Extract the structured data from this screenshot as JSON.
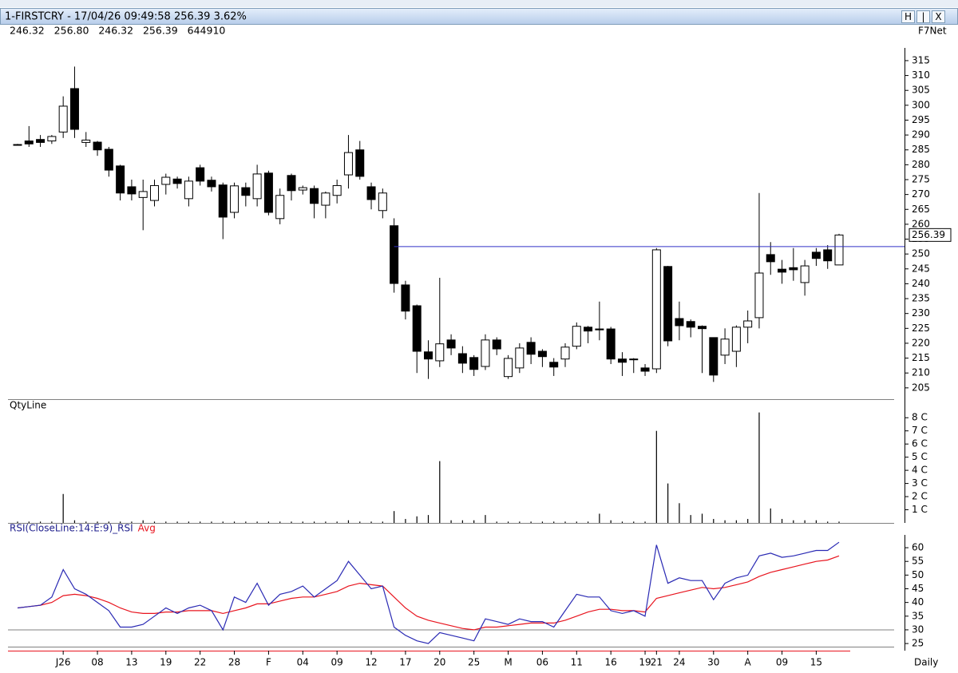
{
  "window": {
    "title": "1-FIRSTCRY - 17/04/26 09:49:58 256.39 3.62%",
    "buttons": [
      "H",
      "|",
      "X"
    ],
    "quote": "246.32   256.80   246.32   256.39   644910",
    "source": "F7Net",
    "periodicity": "Daily"
  },
  "chart_data": [
    {
      "type": "candlestick",
      "categories": [
        null,
        null,
        null,
        null,
        "J26",
        null,
        null,
        "08",
        null,
        null,
        "13",
        null,
        null,
        "19",
        null,
        null,
        "22",
        null,
        null,
        "28",
        null,
        null,
        "F",
        null,
        null,
        "04",
        null,
        null,
        "09",
        null,
        null,
        "12",
        null,
        null,
        "17",
        null,
        null,
        "20",
        null,
        null,
        "25",
        null,
        null,
        "M",
        null,
        null,
        "06",
        null,
        null,
        "11",
        null,
        null,
        "16",
        null,
        null,
        "19",
        "21",
        null,
        "24",
        null,
        null,
        "30",
        null,
        null,
        "A",
        null,
        null,
        "09",
        null,
        null,
        "15",
        null,
        null
      ],
      "open": [
        286.8,
        288,
        288.5,
        288,
        291,
        305.6,
        287.5,
        287.6,
        285.2,
        279.6,
        272.6,
        269,
        268,
        273.4,
        275.2,
        268.6,
        279,
        274.8,
        273.2,
        264,
        272.3,
        268.6,
        277.2,
        261.9,
        276.4,
        271.5,
        272,
        266.4,
        269.7,
        276.6,
        285,
        272.6,
        264.6,
        259.5,
        239.6,
        232.6,
        217.1,
        214.1,
        221.1,
        216.5,
        215.2,
        212.2,
        221.1,
        208.8,
        211.7,
        220.3,
        217.3,
        213.6,
        214.7,
        219,
        225.4,
        224.8,
        224.8,
        214.7,
        214.7,
        211.7,
        211.4,
        245.8,
        228.3,
        227.3,
        225.7,
        221.9,
        216,
        217.3,
        225.4,
        228.6,
        249.8,
        244.9,
        245.4,
        240.4,
        250.6,
        251.4,
        246.32
      ],
      "high": [
        287,
        293,
        290,
        290,
        303,
        313,
        291,
        288,
        286,
        280,
        275,
        275,
        275,
        277,
        276,
        276,
        280,
        276,
        274,
        274,
        274,
        280,
        278,
        272,
        277,
        273,
        273,
        271,
        275,
        290,
        288,
        274,
        272,
        262,
        241,
        233,
        221,
        242,
        223,
        219,
        216,
        223,
        222,
        216,
        220,
        222,
        218,
        215,
        220,
        227,
        225.8,
        234,
        225.5,
        217,
        215,
        213,
        252,
        246,
        234,
        228,
        226,
        222,
        225,
        226,
        231,
        270.5,
        254,
        248,
        252,
        248,
        252,
        253,
        256.8
      ],
      "low": [
        286.5,
        286,
        286,
        287,
        289,
        289,
        286,
        283,
        276,
        268,
        268,
        258,
        266,
        270,
        272,
        266,
        273,
        271,
        255,
        262,
        266,
        266,
        263,
        260,
        268,
        270,
        262,
        262,
        267,
        272,
        275,
        265,
        262,
        237,
        228,
        210,
        208,
        212,
        216,
        210,
        209,
        211,
        216,
        208,
        210,
        213,
        212,
        209,
        212,
        218,
        220,
        221,
        213,
        209,
        210,
        209,
        210,
        219,
        221,
        222,
        210,
        207,
        213,
        212,
        220,
        225,
        243,
        240,
        241,
        236,
        246,
        245,
        246.32
      ],
      "close": [
        286.8,
        287,
        287.5,
        289.5,
        299.7,
        291.9,
        288.3,
        285,
        278.2,
        270.5,
        270.2,
        271,
        273,
        275.8,
        273.7,
        274.5,
        274.5,
        272.6,
        262.4,
        272.9,
        269.7,
        276.9,
        264,
        269.7,
        271.3,
        272.3,
        267,
        270.5,
        273,
        284.1,
        276.1,
        268.3,
        270.5,
        240.1,
        230.8,
        217.3,
        214.7,
        219.8,
        218.4,
        213.3,
        211.2,
        221.1,
        218.1,
        214.9,
        218.4,
        216.3,
        215.5,
        212,
        218.7,
        225.7,
        224.1,
        224.5,
        214.7,
        213.6,
        214.6,
        210.6,
        251.4,
        220.8,
        225.9,
        225.4,
        224.9,
        209.3,
        221.4,
        225.4,
        227.5,
        243.6,
        247.4,
        243.9,
        244.7,
        246,
        248.5,
        247.7,
        256.39
      ],
      "hline": 252.5,
      "hline_color": "#3030c8",
      "ylim": [
        201.2,
        322.5
      ],
      "yticks": [
        205,
        210,
        215,
        220,
        225,
        230,
        235,
        240,
        245,
        250,
        255,
        260,
        265,
        270,
        275,
        280,
        285,
        290,
        295,
        300,
        305,
        310,
        315
      ]
    },
    {
      "type": "bar",
      "title": "QtyLine",
      "color": "#000000",
      "values": [
        0.1,
        0.1,
        0.1,
        0.1,
        2.2,
        0.2,
        0.1,
        0.1,
        0.1,
        0.1,
        0.1,
        0.2,
        0.1,
        0.1,
        0.1,
        0.1,
        0.1,
        0.1,
        0.1,
        0.1,
        0.1,
        0.1,
        0.1,
        0.1,
        0.1,
        0.1,
        0.1,
        0.1,
        0.1,
        0.2,
        0.1,
        0.1,
        0.1,
        0.9,
        0.3,
        0.5,
        0.6,
        4.7,
        0.2,
        0.2,
        0.2,
        0.6,
        0.1,
        0.1,
        0.1,
        0.1,
        0.1,
        0.1,
        0.1,
        0.1,
        0.1,
        0.7,
        0.2,
        0.1,
        0.1,
        0.1,
        7.0,
        3.0,
        1.5,
        0.6,
        0.7,
        0.3,
        0.2,
        0.2,
        0.3,
        8.4,
        1.1,
        0.3,
        0.2,
        0.2,
        0.2,
        0.1,
        0.1
      ],
      "ylim": [
        0,
        8.5
      ],
      "yticks": [
        {
          "value": 1,
          "label": "1 C"
        },
        {
          "value": 2,
          "label": "2 C"
        },
        {
          "value": 3,
          "label": "3 C"
        },
        {
          "value": 4,
          "label": "4 C"
        },
        {
          "value": 5,
          "label": "5 C"
        },
        {
          "value": 6,
          "label": "6 C"
        },
        {
          "value": 7,
          "label": "7 C"
        },
        {
          "value": 8,
          "label": "8 C"
        }
      ]
    },
    {
      "type": "line",
      "series": [
        {
          "name": "RSI(CloseLine:14:E:9)_RSI",
          "color": "#2a2ab4",
          "values": [
            38,
            38.5,
            39,
            42,
            52,
            45,
            43,
            40,
            37,
            31,
            31,
            32,
            35,
            38,
            36,
            38,
            39,
            37,
            30,
            42,
            40,
            47,
            39,
            43,
            44,
            46,
            42,
            45,
            48,
            55,
            50,
            45,
            46,
            31,
            28,
            26,
            25,
            29,
            28,
            27,
            26,
            34,
            33,
            32,
            34,
            33,
            33,
            31,
            37,
            43,
            42,
            42,
            37,
            36,
            37,
            35,
            61,
            47,
            49,
            48,
            48,
            41,
            47,
            49,
            50,
            57,
            58,
            56.5,
            57,
            58,
            59,
            59,
            62
          ]
        },
        {
          "name": "Avg",
          "color": "#e8141e",
          "values": [
            38,
            38.5,
            39,
            40,
            42.5,
            43,
            42.5,
            41.5,
            40,
            38,
            36.5,
            36,
            36,
            36.5,
            36.5,
            37,
            37,
            37,
            36,
            37,
            38,
            39.5,
            39.5,
            40.5,
            41.5,
            42,
            42,
            43,
            44,
            46,
            47,
            46.5,
            46,
            42,
            38,
            35,
            33.5,
            32.5,
            31.5,
            30.5,
            30,
            31,
            31,
            31.5,
            32,
            32.5,
            32.5,
            32.5,
            33.5,
            35,
            36.5,
            37.5,
            37.5,
            37,
            37,
            36.5,
            41.5,
            42.5,
            43.5,
            44.5,
            45.5,
            45,
            45.5,
            46.5,
            47.5,
            49.5,
            51,
            52,
            53,
            54,
            55,
            55.5,
            57
          ]
        }
      ],
      "ref_line": 30,
      "ylim": [
        22.4,
        64.1
      ],
      "yticks": [
        25,
        30,
        35,
        40,
        45,
        50,
        55,
        60
      ]
    }
  ]
}
